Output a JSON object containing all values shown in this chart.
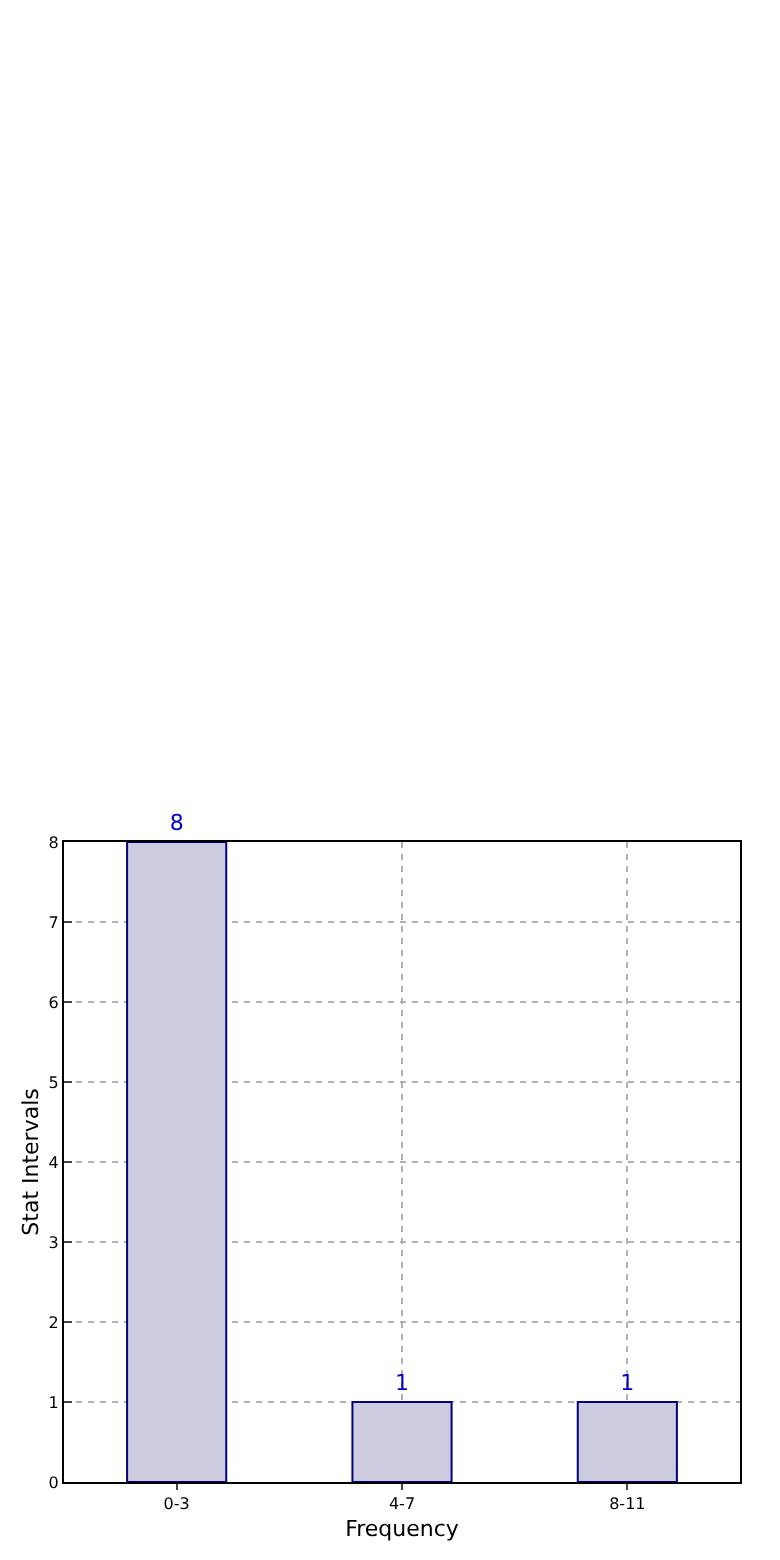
{
  "chart_data": {
    "type": "bar",
    "xlabel": "Frequency",
    "ylabel": "Stat Intervals",
    "categories": [
      "0-3",
      "4-7",
      "8-11"
    ],
    "values": [
      8,
      1,
      1
    ],
    "color": "#ccccde",
    "ylim": [
      0,
      8
    ],
    "yticks": [
      0,
      1,
      2,
      3,
      4,
      5,
      6,
      7,
      8
    ],
    "grid": true,
    "data_labels": true
  }
}
